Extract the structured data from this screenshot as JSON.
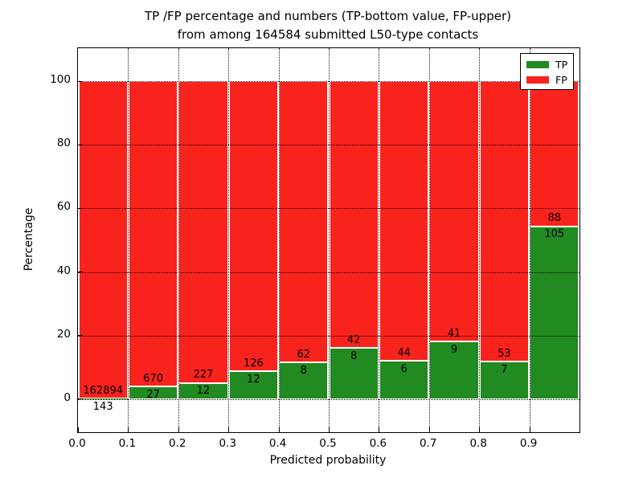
{
  "chart_data": {
    "type": "bar",
    "stacked": true,
    "title_lines": [
      "TP /FP percentage and numbers (TP-bottom value, FP-upper)",
      "from among 164584 submitted L50-type contacts"
    ],
    "xlabel": "Predicted probability",
    "ylabel": "Percentage",
    "x_tick_labels": [
      "0.0",
      "0.1",
      "0.2",
      "0.3",
      "0.4",
      "0.5",
      "0.6",
      "0.7",
      "0.8",
      "0.9"
    ],
    "y_tick_labels": [
      "0",
      "20",
      "40",
      "60",
      "80",
      "100"
    ],
    "y_tick_values": [
      0,
      20,
      40,
      60,
      80,
      100
    ],
    "xlim": [
      0.0,
      1.0
    ],
    "ylim": [
      -10.5,
      110.5
    ],
    "grid_style": "dotted",
    "legend_position": "upper-right",
    "bar_edge_color": "#ffffff",
    "bin_width": 0.1,
    "total_contacts": 164584,
    "bins": [
      {
        "x0": 0.0,
        "tp": 143,
        "fp": 162894
      },
      {
        "x0": 0.1,
        "tp": 27,
        "fp": 670
      },
      {
        "x0": 0.2,
        "tp": 12,
        "fp": 227
      },
      {
        "x0": 0.3,
        "tp": 12,
        "fp": 126
      },
      {
        "x0": 0.4,
        "tp": 8,
        "fp": 62
      },
      {
        "x0": 0.5,
        "tp": 8,
        "fp": 42
      },
      {
        "x0": 0.6,
        "tp": 6,
        "fp": 44
      },
      {
        "x0": 0.7,
        "tp": 9,
        "fp": 41
      },
      {
        "x0": 0.8,
        "tp": 7,
        "fp": 53
      },
      {
        "x0": 0.9,
        "tp": 105,
        "fp": 88
      }
    ],
    "series": [
      {
        "name": "TP",
        "color": "#218a21"
      },
      {
        "name": "FP",
        "color": "#f9231d"
      }
    ]
  }
}
